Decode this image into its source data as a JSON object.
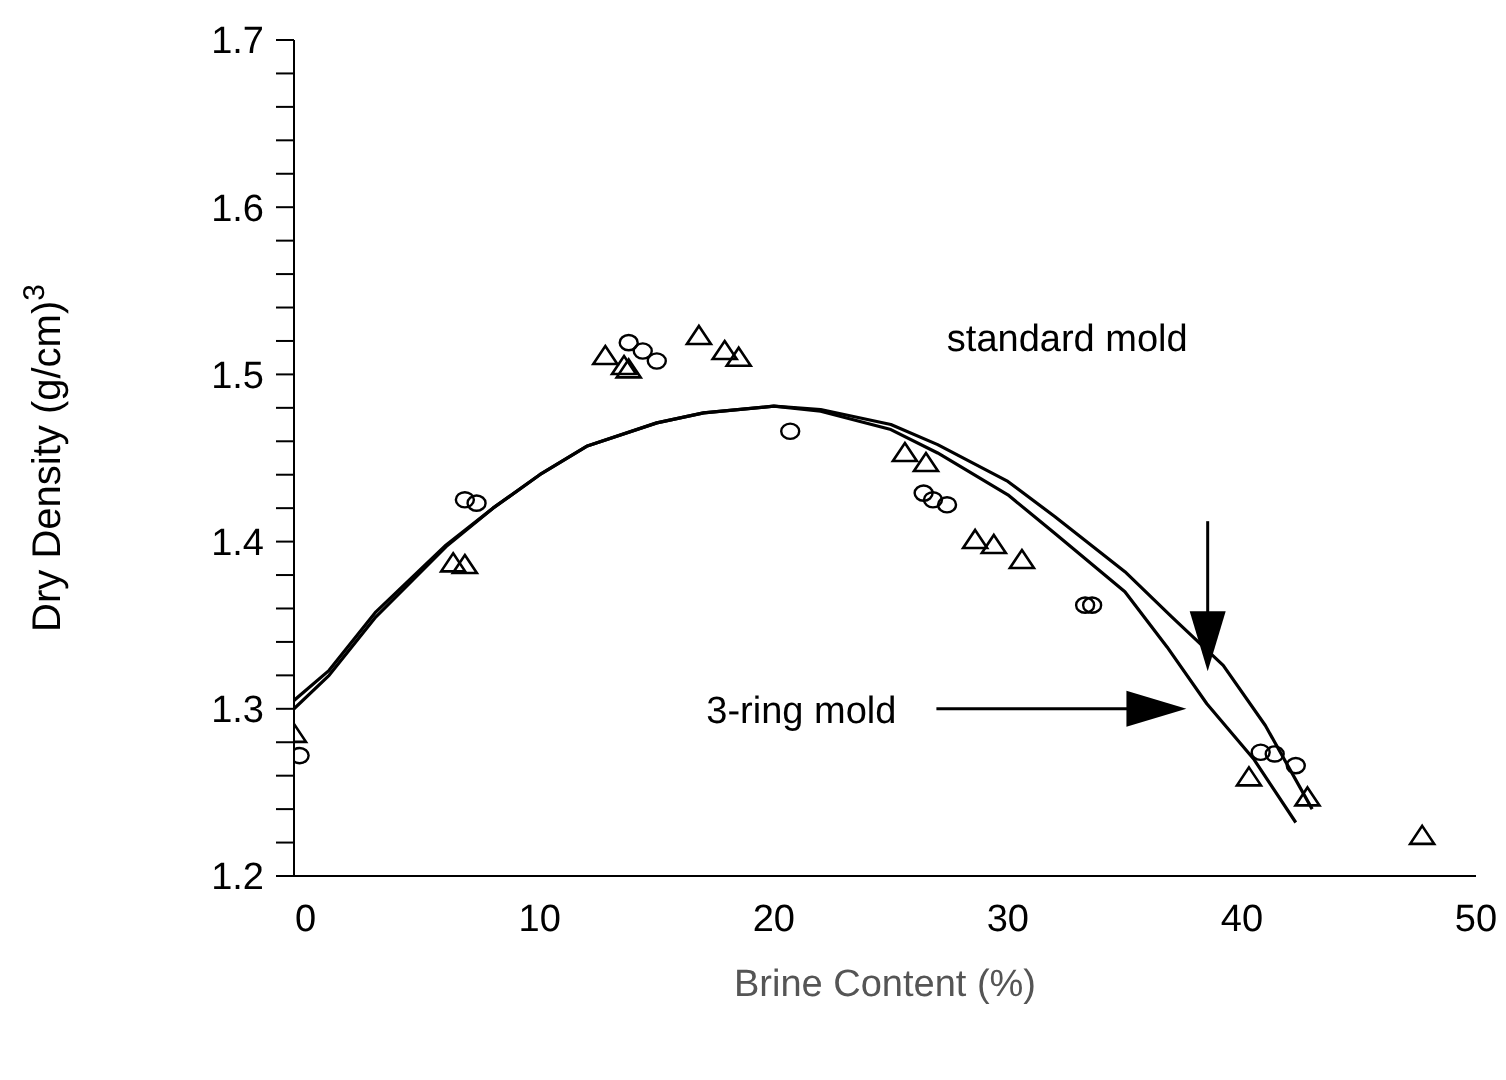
{
  "chart_data": {
    "type": "scatter",
    "xlabel": "Brine Content (%)",
    "ylabel": "Dry Density (g/cm)$^{3}$",
    "xlim": [
      -0.5,
      50
    ],
    "xticks": [
      0,
      10,
      20,
      30,
      40,
      50
    ],
    "ylim": [
      1.2,
      1.7
    ],
    "yticks": [
      1.2,
      {
        "value": 1.22,
        "label": null
      },
      {
        "value": 1.24,
        "label": null
      },
      {
        "value": 1.26,
        "label": null
      },
      {
        "value": 1.28,
        "label": null
      },
      1.3,
      {
        "value": 1.32,
        "label": null
      },
      {
        "value": 1.34,
        "label": null
      },
      {
        "value": 1.36,
        "label": null
      },
      {
        "value": 1.38,
        "label": null
      },
      1.4,
      {
        "value": 1.42,
        "label": null
      },
      {
        "value": 1.44,
        "label": null
      },
      {
        "value": 1.46,
        "label": null
      },
      {
        "value": 1.48,
        "label": null
      },
      1.5,
      {
        "value": 1.52,
        "label": null
      },
      {
        "value": 1.54,
        "label": null
      },
      {
        "value": 1.56,
        "label": null
      },
      {
        "value": 1.58,
        "label": null
      },
      1.6,
      {
        "value": 1.62,
        "label": null
      },
      {
        "value": 1.64,
        "label": null
      },
      {
        "value": 1.66,
        "label": null
      },
      {
        "value": 1.68,
        "label": null
      },
      1.7
    ],
    "grid": false,
    "legend": false,
    "series": [
      {
        "marker": "circle",
        "color": "#000000",
        "x": [
          -0.26,
          6.8,
          7.3,
          13.8,
          14.4,
          15.0,
          20.7,
          26.4,
          26.8,
          27.4,
          33.3,
          33.6,
          40.8,
          41.4,
          42.3
        ],
        "values": [
          1.272,
          1.425,
          1.423,
          1.519,
          1.514,
          1.508,
          1.466,
          1.429,
          1.425,
          1.422,
          1.362,
          1.362,
          1.274,
          1.273,
          1.266
        ]
      },
      {
        "marker": "triangle",
        "color": "#000000",
        "x": [
          -0.5,
          6.3,
          6.8,
          12.8,
          13.6,
          13.8,
          16.8,
          17.9,
          18.5,
          25.6,
          26.5,
          28.6,
          29.4,
          30.6,
          40.3,
          42.8,
          47.7
        ],
        "values": [
          1.285,
          1.387,
          1.386,
          1.511,
          1.505,
          1.503,
          1.523,
          1.514,
          1.51,
          1.453,
          1.447,
          1.401,
          1.398,
          1.389,
          1.259,
          1.247,
          1.224
        ]
      },
      {
        "type": "line",
        "marker": "none",
        "line_style": "solid",
        "color": "#000000",
        "x": [
          -0.5,
          1,
          3,
          6,
          8,
          10,
          12,
          15,
          17,
          20,
          22,
          25,
          27,
          30,
          32,
          35,
          37,
          39.2,
          41,
          43
        ],
        "values": [
          1.3,
          1.32,
          1.355,
          1.397,
          1.42,
          1.44,
          1.457,
          1.471,
          1.477,
          1.481,
          1.479,
          1.47,
          1.458,
          1.436,
          1.415,
          1.382,
          1.355,
          1.326,
          1.29,
          1.24
        ]
      },
      {
        "type": "line",
        "marker": "none",
        "line_style": "solid",
        "color": "#000000",
        "x": [
          -0.5,
          1,
          3,
          6,
          8,
          10,
          12,
          15,
          17,
          20,
          22,
          25,
          27,
          30,
          32,
          35,
          36.8,
          38.5,
          40.5,
          42.3
        ],
        "values": [
          1.305,
          1.323,
          1.358,
          1.398,
          1.42,
          1.44,
          1.457,
          1.471,
          1.477,
          1.481,
          1.478,
          1.467,
          1.453,
          1.428,
          1.405,
          1.37,
          1.337,
          1.303,
          1.27,
          1.232
        ]
      }
    ],
    "annotations": [
      "standard mold",
      "3-ring mold"
    ]
  }
}
